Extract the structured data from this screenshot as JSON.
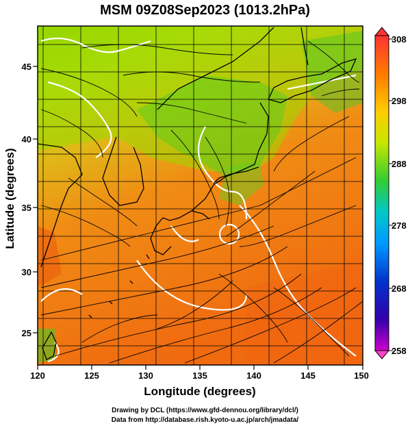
{
  "title": "MSM 09Z08Sep2023 (1013.2hPa)",
  "x_axis": {
    "label": "Longitude (degrees)",
    "ticks": [
      "120",
      "125",
      "130",
      "135",
      "140",
      "145",
      "150"
    ]
  },
  "y_axis": {
    "label": "Latitude  (degrees)",
    "ticks": [
      "25",
      "30",
      "35",
      "40",
      "45"
    ]
  },
  "colorbar": {
    "ticks": [
      "308",
      "298",
      "288",
      "278",
      "268",
      "258"
    ],
    "colors": [
      "#ff3333",
      "#ff7a00",
      "#ffcc00",
      "#c8e600",
      "#33cc33",
      "#00c8c8",
      "#0099ff",
      "#0033cc",
      "#3300aa",
      "#cc00cc"
    ]
  },
  "footer": {
    "line1": "Drawing by DCL (https://www.gfd-dennou.org/library/dcl/)",
    "line2": "Data from http://database.rish.kyoto-u.ac.jp/arch/jmadata/"
  },
  "map_extent": {
    "lon": [
      120,
      150
    ],
    "lat": [
      23,
      48
    ]
  }
}
